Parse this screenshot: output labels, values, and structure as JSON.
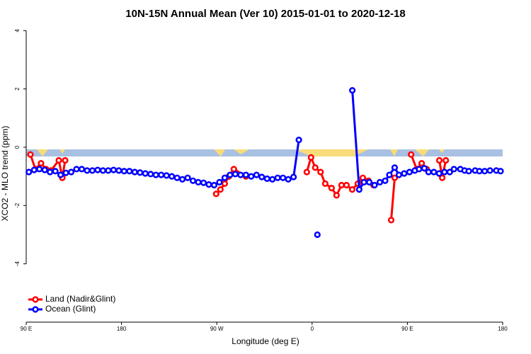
{
  "chart_data": {
    "type": "line",
    "title": "10N-15N Annual Mean (Ver 10)   2015-01-01 to 2020-12-18",
    "x_label": "Longitude (deg E)",
    "y_label": "XCO2 - MLO trend (ppm)",
    "xlim": [
      90,
      540
    ],
    "ylim": [
      -6,
      4.2
    ],
    "xticks": [
      {
        "value": 90,
        "label": "90 E"
      },
      {
        "value": 180,
        "label": "180"
      },
      {
        "value": 270,
        "label": "90 W"
      },
      {
        "value": 360,
        "label": "0"
      },
      {
        "value": 450,
        "label": "90 E"
      },
      {
        "value": 540,
        "label": "180"
      }
    ],
    "yticks": [
      4,
      2,
      0,
      -2,
      -4
    ],
    "legend": "bottom-left",
    "series": [
      {
        "name": "Land (Nadir&Glint)",
        "color": "#ff0000",
        "x": [
          94,
          98.7,
          104,
          108.7,
          113.4,
          120.8,
          124.1,
          126.8,
          200,
          269.4,
          273.4,
          277.5,
          281.4,
          286.1,
          297.5,
          320,
          355,
          359,
          363,
          368,
          372.4,
          378.4,
          383.1,
          387.8,
          392.5,
          397.9,
          403.2,
          407.9,
          413.2,
          418,
          428,
          434.7,
          438,
          445,
          453.5,
          458.8,
          463.5,
          468.2,
          475,
          480.2,
          482.9,
          486.3
        ],
        "values": [
          -0.25,
          -0.75,
          -0.55,
          -0.75,
          -0.8,
          -0.45,
          -1.05,
          -0.45,
          null,
          -1.6,
          -1.45,
          -1.25,
          -1.0,
          -0.75,
          -1.0,
          null,
          -0.85,
          -0.35,
          -0.7,
          -0.85,
          -1.25,
          -1.4,
          -1.65,
          -1.3,
          -1.3,
          -1.45,
          -1.25,
          -1.05,
          -1.15,
          -1.3,
          null,
          -2.5,
          -1.05,
          null,
          -0.25,
          -0.75,
          -0.55,
          -0.75,
          null,
          -0.45,
          -1.05,
          -0.45
        ]
      },
      {
        "name": "Ocean (Glint)",
        "color": "#0000ff",
        "x": [
          92.5,
          97.5,
          102.5,
          107.5,
          112.5,
          117.5,
          122.5,
          127.5,
          132.5,
          137.5,
          142.5,
          147.5,
          152.5,
          157.5,
          162.5,
          167.5,
          172.5,
          177.5,
          182.5,
          187.5,
          192.5,
          197.5,
          202.5,
          207.5,
          212.5,
          217.5,
          222.5,
          227.5,
          232.5,
          237.5,
          242.5,
          247.5,
          252.5,
          257.5,
          262.5,
          267.5,
          272.5,
          277.5,
          282.5,
          287.5,
          292.5,
          297.5,
          302.5,
          307.5,
          312.5,
          317.5,
          322.5,
          327.5,
          332.5,
          337.5,
          342.5,
          347.5,
          355,
          365,
          380,
          398,
          404.5,
          409,
          414,
          419,
          424,
          429,
          433,
          438,
          442,
          447,
          452,
          457,
          461,
          466,
          470,
          475,
          480,
          485,
          490,
          494,
          500,
          504,
          508,
          514,
          518,
          523,
          528,
          534,
          538
        ],
        "values": [
          -0.85,
          -0.78,
          -0.75,
          -0.78,
          -0.85,
          -0.82,
          -0.95,
          -0.88,
          -0.85,
          -0.75,
          -0.75,
          -0.8,
          -0.8,
          -0.78,
          -0.8,
          -0.8,
          -0.78,
          -0.8,
          -0.82,
          -0.82,
          -0.85,
          -0.87,
          -0.9,
          -0.92,
          -0.95,
          -0.95,
          -0.97,
          -1.0,
          -1.05,
          -1.1,
          -1.05,
          -1.15,
          -1.2,
          -1.22,
          -1.28,
          -1.3,
          -1.2,
          -1.05,
          -0.95,
          -0.92,
          -0.95,
          -0.95,
          -1.0,
          -0.95,
          -1.02,
          -1.08,
          -1.1,
          -1.05,
          -1.05,
          -1.1,
          -1.02,
          0.25,
          null,
          -3.0,
          null,
          1.95,
          -1.45,
          -1.2,
          -1.2,
          -1.3,
          -1.2,
          -1.15,
          -0.95,
          -0.7,
          -0.95,
          -0.9,
          -0.85,
          -0.8,
          -0.75,
          -0.72,
          -0.85,
          -0.85,
          -0.9,
          -0.85,
          -0.85,
          -0.75,
          -0.75,
          -0.8,
          -0.82,
          -0.8,
          -0.82,
          -0.82,
          -0.8,
          -0.8,
          -0.82
        ]
      }
    ]
  }
}
